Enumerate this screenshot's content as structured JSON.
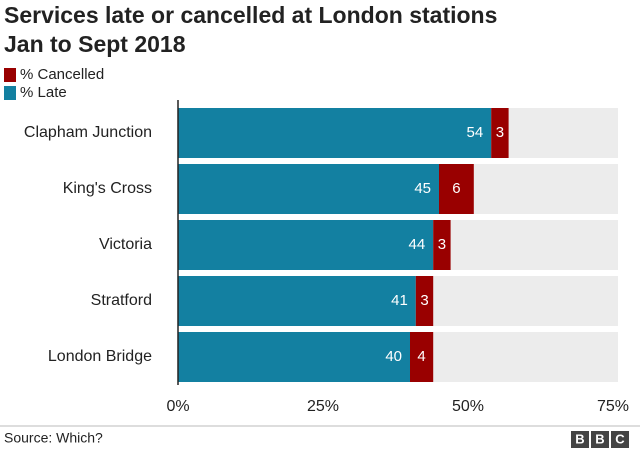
{
  "chart_data": {
    "type": "stacked_barh",
    "title": "Services late or cancelled at London stations",
    "subtitle": "Jan to Sept 2018",
    "categories": [
      "Clapham Junction",
      "King's Cross",
      "Victoria",
      "Stratford",
      "London Bridge"
    ],
    "series": [
      {
        "name": "% Late",
        "color": "#1380a1",
        "values": [
          54,
          45,
          44,
          41,
          40
        ]
      },
      {
        "name": "% Cancelled",
        "color": "#990000",
        "values": [
          3,
          6,
          3,
          3,
          4
        ]
      }
    ],
    "xlim": [
      0,
      75
    ],
    "xticks": [
      {
        "value": 0,
        "label": "0%"
      },
      {
        "value": 25,
        "label": "25%"
      },
      {
        "value": 50,
        "label": "50%"
      },
      {
        "value": 75,
        "label": "75%"
      }
    ],
    "legend": "top-left",
    "source": "Source: Which?",
    "logo": "BBC"
  }
}
